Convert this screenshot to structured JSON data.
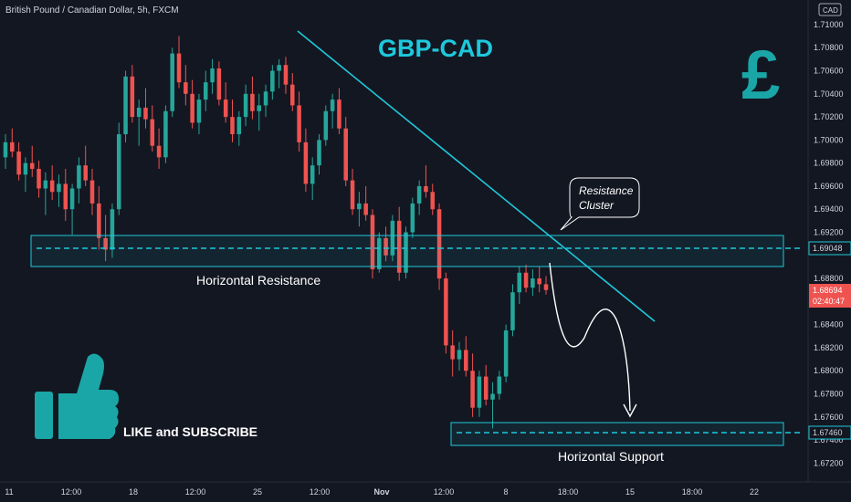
{
  "header": {
    "symbol_line": "British Pound / Canadian Dollar, 5h, FXCM",
    "currency_badge": "CAD"
  },
  "annotations": {
    "title": "GBP-CAD",
    "resistance_cluster_line1": "Resistance",
    "resistance_cluster_line2": "Cluster",
    "horizontal_resistance": "Horizontal Resistance",
    "horizontal_support": "Horizontal Support",
    "like_subscribe": "LIKE and SUBSCRIBE",
    "pound_symbol": "£"
  },
  "colors": {
    "background": "#131722",
    "bull": "#26a69a",
    "bear": "#ef5350",
    "trendline": "#1ec8dc",
    "zone": "#1ec8dc",
    "title": "#1ec8dc",
    "teal_icon": "#1aa6a6",
    "price_tag": "#ef5350"
  },
  "icons": [
    "thumbs-up-icon",
    "pound-sign-icon"
  ],
  "price_tags": {
    "resistance_level": "1.69048",
    "support_level": "1.67460",
    "current_price": "1.68694",
    "countdown": "02:40:47"
  },
  "chart_data": {
    "type": "candlestick",
    "title": "",
    "y_axis": {
      "ylim": [
        1.671,
        1.7115
      ],
      "ticks": [
        "1.71000",
        "1.70800",
        "1.70600",
        "1.70400",
        "1.70200",
        "1.70000",
        "1.69800",
        "1.69600",
        "1.69400",
        "1.69200",
        "1.68800",
        "1.68400",
        "1.68200",
        "1.68000",
        "1.67800",
        "1.67600",
        "1.67400",
        "1.67200"
      ],
      "side": "right"
    },
    "x_axis": {
      "tick_labels": [
        "11",
        "12:00",
        "18",
        "12:00",
        "25",
        "12:00",
        "Nov",
        "12:00",
        "8",
        "18:00",
        "15",
        "18:00",
        "22"
      ]
    },
    "candles_ohlc": [
      [
        1.6985,
        1.7005,
        1.6975,
        1.6998
      ],
      [
        1.6998,
        1.701,
        1.6985,
        1.699
      ],
      [
        1.699,
        1.6998,
        1.6965,
        1.697
      ],
      [
        1.697,
        1.6985,
        1.6955,
        1.698
      ],
      [
        1.698,
        1.6995,
        1.6968,
        1.6975
      ],
      [
        1.6975,
        1.6982,
        1.695,
        1.6958
      ],
      [
        1.6958,
        1.6972,
        1.6935,
        1.6965
      ],
      [
        1.6965,
        1.6978,
        1.6948,
        1.6955
      ],
      [
        1.6955,
        1.697,
        1.6942,
        1.6962
      ],
      [
        1.6962,
        1.6975,
        1.693,
        1.694
      ],
      [
        1.694,
        1.6962,
        1.6918,
        1.6958
      ],
      [
        1.6958,
        1.6985,
        1.6945,
        1.6978
      ],
      [
        1.6978,
        1.6995,
        1.696,
        1.6965
      ],
      [
        1.6965,
        1.6975,
        1.6935,
        1.6945
      ],
      [
        1.6945,
        1.696,
        1.6905,
        1.6915
      ],
      [
        1.6915,
        1.6935,
        1.6895,
        1.6905
      ],
      [
        1.6905,
        1.6945,
        1.6898,
        1.694
      ],
      [
        1.694,
        1.7015,
        1.6935,
        1.7005
      ],
      [
        1.7005,
        1.706,
        1.6998,
        1.7055
      ],
      [
        1.7055,
        1.7065,
        1.7015,
        1.702
      ],
      [
        1.702,
        1.7035,
        1.6995,
        1.7028
      ],
      [
        1.7028,
        1.7045,
        1.701,
        1.7018
      ],
      [
        1.7018,
        1.703,
        1.699,
        1.6995
      ],
      [
        1.6995,
        1.701,
        1.6975,
        1.6985
      ],
      [
        1.6985,
        1.703,
        1.698,
        1.7025
      ],
      [
        1.7025,
        1.708,
        1.702,
        1.7075
      ],
      [
        1.7075,
        1.709,
        1.7045,
        1.705
      ],
      [
        1.705,
        1.7065,
        1.703,
        1.704
      ],
      [
        1.704,
        1.7052,
        1.701,
        1.7015
      ],
      [
        1.7015,
        1.704,
        1.7005,
        1.7035
      ],
      [
        1.7035,
        1.706,
        1.7025,
        1.705
      ],
      [
        1.705,
        1.707,
        1.704,
        1.7062
      ],
      [
        1.7062,
        1.7068,
        1.703,
        1.7035
      ],
      [
        1.7035,
        1.705,
        1.7015,
        1.702
      ],
      [
        1.702,
        1.7035,
        1.6998,
        1.7005
      ],
      [
        1.7005,
        1.7025,
        1.6995,
        1.702
      ],
      [
        1.702,
        1.7048,
        1.7012,
        1.704
      ],
      [
        1.704,
        1.7055,
        1.7018,
        1.7025
      ],
      [
        1.7025,
        1.704,
        1.7008,
        1.703
      ],
      [
        1.703,
        1.7048,
        1.702,
        1.7042
      ],
      [
        1.7042,
        1.7065,
        1.7035,
        1.706
      ],
      [
        1.706,
        1.707,
        1.7045,
        1.7065
      ],
      [
        1.7065,
        1.7072,
        1.704,
        1.7048
      ],
      [
        1.7048,
        1.7058,
        1.7025,
        1.703
      ],
      [
        1.703,
        1.7042,
        1.699,
        1.6998
      ],
      [
        1.6998,
        1.701,
        1.6955,
        1.6962
      ],
      [
        1.6962,
        1.6985,
        1.6948,
        1.6978
      ],
      [
        1.6978,
        1.7005,
        1.697,
        1.7
      ],
      [
        1.7,
        1.703,
        1.6995,
        1.7025
      ],
      [
        1.7025,
        1.704,
        1.701,
        1.7035
      ],
      [
        1.7035,
        1.7045,
        1.7005,
        1.701
      ],
      [
        1.701,
        1.702,
        1.696,
        1.6965
      ],
      [
        1.6965,
        1.6975,
        1.6935,
        1.694
      ],
      [
        1.694,
        1.6955,
        1.6925,
        1.6945
      ],
      [
        1.6945,
        1.696,
        1.693,
        1.6935
      ],
      [
        1.6935,
        1.694,
        1.688,
        1.6888
      ],
      [
        1.6888,
        1.692,
        1.6885,
        1.6915
      ],
      [
        1.6915,
        1.6925,
        1.6895,
        1.69
      ],
      [
        1.69,
        1.6935,
        1.6895,
        1.693
      ],
      [
        1.693,
        1.6942,
        1.6878,
        1.6885
      ],
      [
        1.6885,
        1.6925,
        1.688,
        1.692
      ],
      [
        1.692,
        1.695,
        1.6915,
        1.6945
      ],
      [
        1.6945,
        1.6965,
        1.6935,
        1.696
      ],
      [
        1.696,
        1.6978,
        1.695,
        1.6955
      ],
      [
        1.6955,
        1.6962,
        1.6935,
        1.694
      ],
      [
        1.694,
        1.6945,
        1.687,
        1.688
      ],
      [
        1.688,
        1.6885,
        1.6815,
        1.6822
      ],
      [
        1.6822,
        1.6835,
        1.6795,
        1.681
      ],
      [
        1.681,
        1.6825,
        1.68,
        1.6818
      ],
      [
        1.6818,
        1.683,
        1.6795,
        1.68
      ],
      [
        1.68,
        1.6815,
        1.676,
        1.6768
      ],
      [
        1.6768,
        1.68,
        1.676,
        1.6795
      ],
      [
        1.6795,
        1.6805,
        1.677,
        1.6775
      ],
      [
        1.6775,
        1.679,
        1.675,
        1.678
      ],
      [
        1.678,
        1.68,
        1.6775,
        1.6795
      ],
      [
        1.6795,
        1.684,
        1.679,
        1.6835
      ],
      [
        1.6835,
        1.6875,
        1.683,
        1.6868
      ],
      [
        1.6868,
        1.689,
        1.6858,
        1.6885
      ],
      [
        1.6885,
        1.6892,
        1.6868,
        1.6872
      ],
      [
        1.6872,
        1.6888,
        1.6865,
        1.688
      ],
      [
        1.688,
        1.689,
        1.6868,
        1.6875
      ],
      [
        1.6875,
        1.6882,
        1.6866,
        1.687
      ]
    ],
    "levels": {
      "horizontal_resistance": 1.69048,
      "horizontal_support": 1.6746
    },
    "legend": "none"
  }
}
